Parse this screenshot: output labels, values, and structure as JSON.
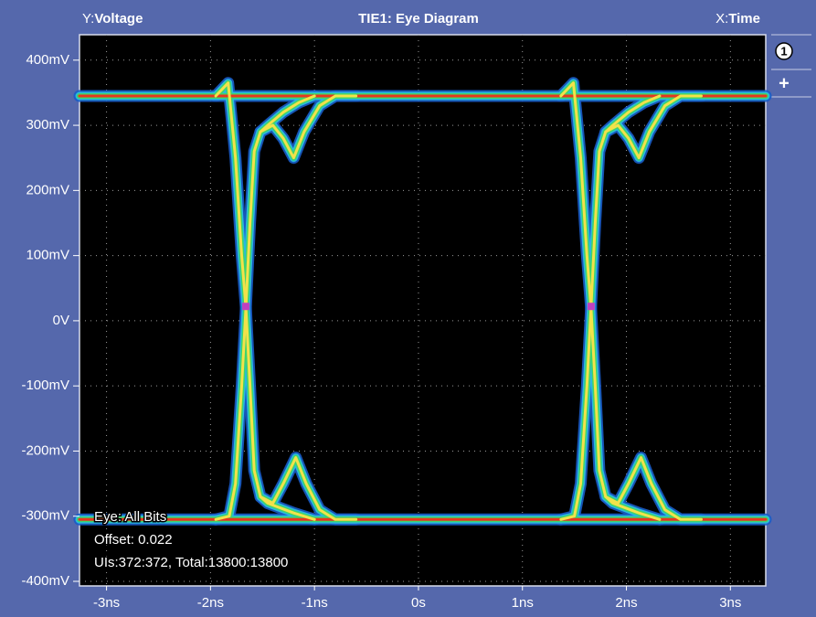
{
  "chart_data": {
    "type": "eye",
    "y_prefix": "Y:",
    "y_label": "Voltage",
    "title": "TIE1: Eye Diagram",
    "x_prefix": "X:",
    "x_label": "Time",
    "xlim": [
      -3.26,
      3.34
    ],
    "ylim": [
      -407,
      439
    ],
    "xticks": [
      {
        "value": -3,
        "label": "-3ns"
      },
      {
        "value": -2,
        "label": "-2ns"
      },
      {
        "value": -1,
        "label": "-1ns"
      },
      {
        "value": 0,
        "label": "0s"
      },
      {
        "value": 1,
        "label": "1ns"
      },
      {
        "value": 2,
        "label": "2ns"
      },
      {
        "value": 3,
        "label": "3ns"
      }
    ],
    "yticks": [
      {
        "value": 400,
        "label": "400mV"
      },
      {
        "value": 300,
        "label": "300mV"
      },
      {
        "value": 200,
        "label": "200mV"
      },
      {
        "value": 100,
        "label": "100mV"
      },
      {
        "value": 0,
        "label": "0V"
      },
      {
        "value": -100,
        "label": "-100mV"
      },
      {
        "value": -200,
        "label": "-200mV"
      },
      {
        "value": -300,
        "label": "-300mV"
      },
      {
        "value": -400,
        "label": "-400mV"
      }
    ],
    "grid": true,
    "series": [
      {
        "color": "#e8361e",
        "x": [
          -3.26,
          3.34
        ],
        "values": [
          345,
          345
        ]
      },
      {
        "color": "#e8361e",
        "x": [
          -3.26,
          3.34
        ],
        "values": [
          -305,
          -305
        ]
      },
      {
        "color": "#f2e24a",
        "x": [
          -1.95,
          -1.82,
          -1.76,
          -1.7,
          -1.66,
          -1.62,
          -1.58,
          -1.52,
          -1.4,
          -1.3,
          -1.2,
          -1.1,
          -0.95,
          -0.8,
          -0.6
        ],
        "values": [
          -305,
          -300,
          -250,
          -100,
          20,
          150,
          260,
          290,
          300,
          280,
          250,
          290,
          330,
          345,
          345
        ]
      },
      {
        "color": "#f2e24a",
        "x": [
          -1.52,
          -1.45,
          -1.3,
          -1.15,
          -1.0
        ],
        "values": [
          290,
          300,
          320,
          335,
          345
        ]
      },
      {
        "color": "#f2e24a",
        "x": [
          -1.95,
          -1.83,
          -1.76,
          -1.7,
          -1.66,
          -1.62,
          -1.58,
          -1.52,
          -1.4,
          -1.3,
          -1.18,
          -1.08,
          -0.95,
          -0.8,
          -0.6
        ],
        "values": [
          345,
          365,
          250,
          100,
          20,
          -100,
          -230,
          -270,
          -280,
          -250,
          -210,
          -250,
          -290,
          -305,
          -305
        ]
      },
      {
        "color": "#f2e24a",
        "x": [
          -1.52,
          -1.45,
          -1.2,
          -1.0
        ],
        "values": [
          -270,
          -280,
          -295,
          -305
        ]
      },
      {
        "color": "#f2e24a",
        "x": [
          1.37,
          1.5,
          1.56,
          1.62,
          1.66,
          1.7,
          1.74,
          1.8,
          1.92,
          2.02,
          2.12,
          2.22,
          2.37,
          2.52,
          2.72
        ],
        "values": [
          -305,
          -300,
          -250,
          -100,
          20,
          150,
          260,
          290,
          300,
          280,
          250,
          290,
          330,
          345,
          345
        ]
      },
      {
        "color": "#f2e24a",
        "x": [
          1.8,
          1.87,
          2.02,
          2.17,
          2.32
        ],
        "values": [
          290,
          300,
          320,
          335,
          345
        ]
      },
      {
        "color": "#f2e24a",
        "x": [
          1.37,
          1.49,
          1.56,
          1.62,
          1.66,
          1.7,
          1.74,
          1.8,
          1.92,
          2.02,
          2.14,
          2.24,
          2.37,
          2.52,
          2.72
        ],
        "values": [
          345,
          365,
          250,
          100,
          20,
          -100,
          -230,
          -270,
          -280,
          -250,
          -210,
          -250,
          -290,
          -305,
          -305
        ]
      },
      {
        "color": "#f2e24a",
        "x": [
          1.8,
          1.87,
          2.12,
          2.32
        ],
        "values": [
          -270,
          -280,
          -295,
          -305
        ]
      }
    ],
    "markers": {
      "color": "#c040c0",
      "x": [
        -1.66,
        1.66
      ],
      "values": [
        22,
        22
      ]
    },
    "annotations": [
      "Eye: All Bits",
      "Offset: 0.022",
      "UIs:372:372, Total:13800:13800"
    ],
    "toolbar": [
      "1",
      "+"
    ]
  }
}
